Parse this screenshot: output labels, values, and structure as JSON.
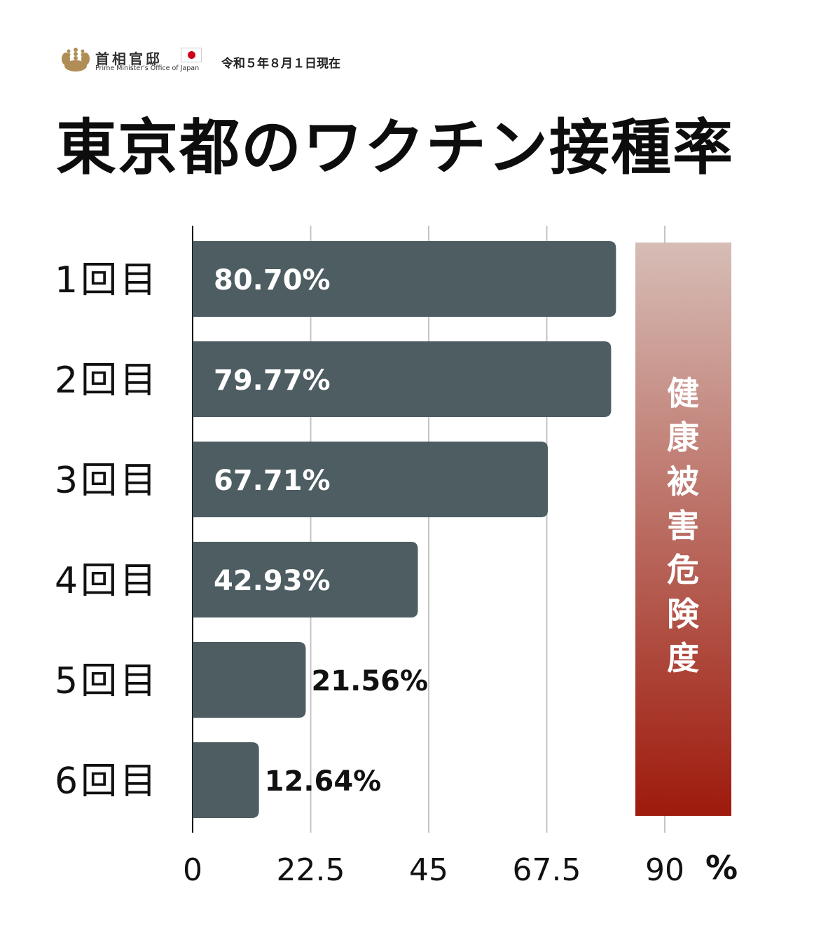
{
  "header": {
    "logo_name": "首相官邸",
    "logo_subtitle": "Prime Minister's Office of Japan",
    "date": "令和５年８月１日現在"
  },
  "title": "東京都のワクチン接種率",
  "risk_bar": {
    "label": "健康被害危険度",
    "color_top": "#d6bdb6",
    "color_bottom": "#9e1a0c"
  },
  "chart_data": {
    "type": "bar",
    "orientation": "horizontal",
    "categories": [
      "1回目",
      "2回目",
      "3回目",
      "4回目",
      "5回目",
      "6回目"
    ],
    "values": [
      80.7,
      79.77,
      67.71,
      42.93,
      21.56,
      12.64
    ],
    "value_labels": [
      "80.70%",
      "79.77%",
      "67.71%",
      "42.93%",
      "21.56%",
      "12.64%"
    ],
    "xlim": [
      0,
      90
    ],
    "x_ticks": [
      "0",
      "22.5",
      "45",
      "67.5",
      "90"
    ],
    "x_tick_values": [
      0,
      22.5,
      45,
      67.5,
      90
    ],
    "x_unit": "%",
    "grid": true,
    "bar_color": "#4d5d61"
  }
}
